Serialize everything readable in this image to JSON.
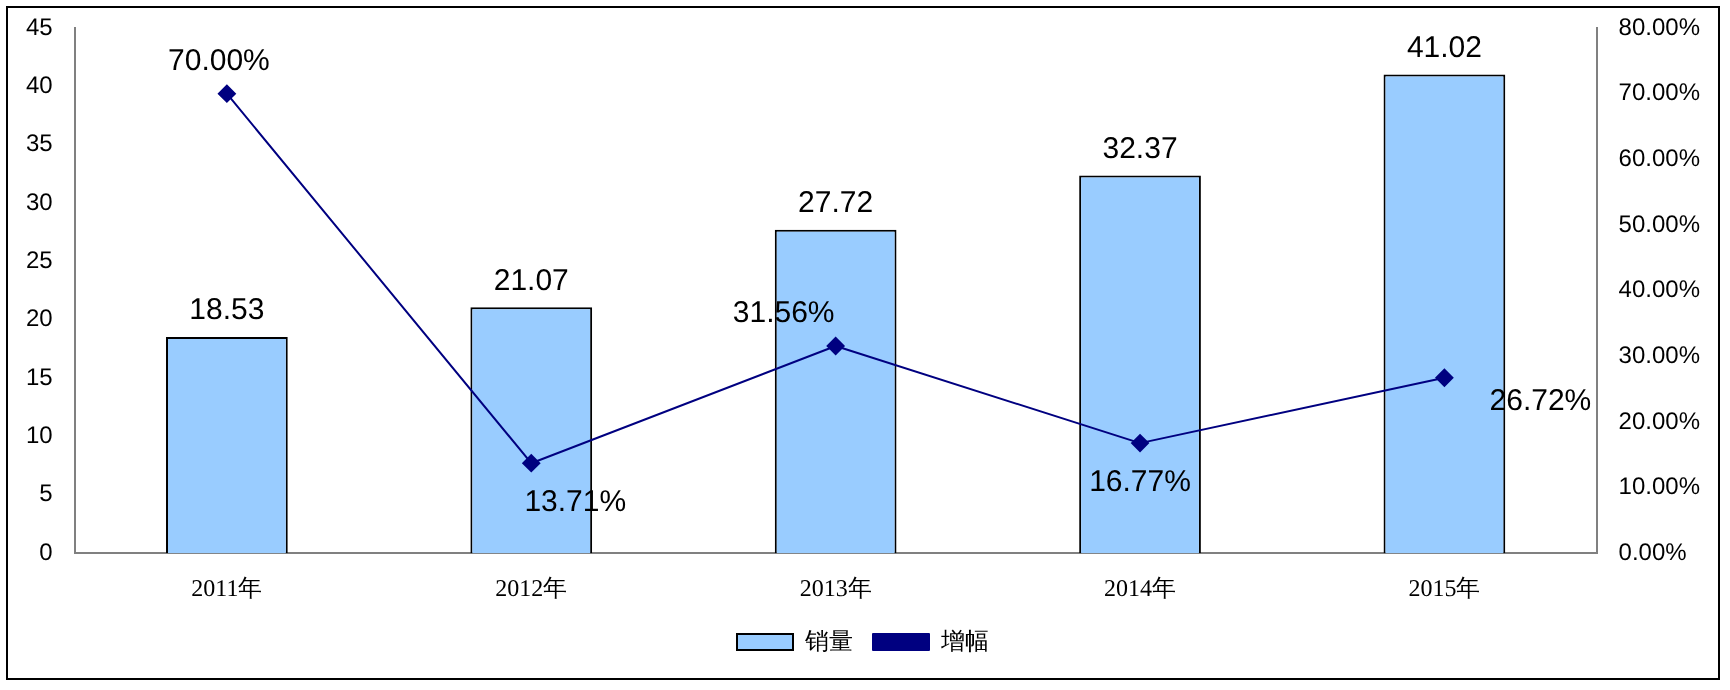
{
  "chart_data": {
    "type": "bar",
    "categories": [
      "2011年",
      "2012年",
      "2013年",
      "2014年",
      "2015年"
    ],
    "series": [
      {
        "name": "销量",
        "color": "#99ccff",
        "values": [
          18.53,
          21.07,
          27.72,
          32.37,
          41.02
        ],
        "value_labels": [
          "18.53",
          "21.07",
          "27.72",
          "32.37",
          "41.02"
        ]
      },
      {
        "name": "增幅",
        "type": "line",
        "axis": "y2",
        "color": "#000080",
        "marker": "diamond",
        "values": [
          70.0,
          13.71,
          31.56,
          16.77,
          26.72
        ],
        "value_labels": [
          "70.00%",
          "13.71%",
          "31.56%",
          "16.77%",
          "26.72%"
        ]
      }
    ],
    "ylim": [
      0,
      45
    ],
    "yticks": [
      0,
      5,
      10,
      15,
      20,
      25,
      30,
      35,
      40,
      45
    ],
    "y2lim": [
      0,
      80
    ],
    "y2ticks": [
      {
        "value": 0,
        "label": "0.00%"
      },
      {
        "value": 10,
        "label": "10.00%"
      },
      {
        "value": 20,
        "label": "20.00%"
      },
      {
        "value": 30,
        "label": "30.00%"
      },
      {
        "value": 40,
        "label": "40.00%"
      },
      {
        "value": 50,
        "label": "50.00%"
      },
      {
        "value": 60,
        "label": "60.00%"
      },
      {
        "value": 70,
        "label": "70.00%"
      },
      {
        "value": 80,
        "label": "80.00%"
      }
    ],
    "grid": false,
    "legend": "bottom"
  }
}
